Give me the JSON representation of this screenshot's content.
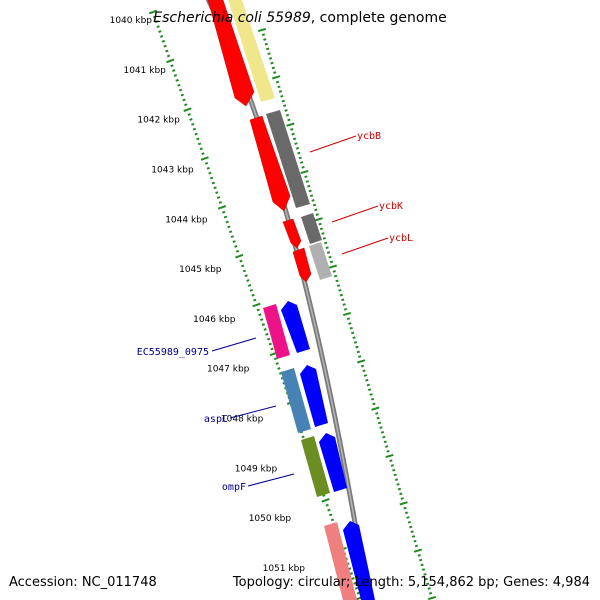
{
  "title": {
    "species": "Escherichia coli 55989",
    "suffix": ", complete genome"
  },
  "footer": {
    "accession": "Accession: NC_011748",
    "summary": "Topology: circular; Length: 5,154,862 bp; Genes: 4,984"
  },
  "colors": {
    "backbone": "#8c8c8c",
    "ticks": "#228b22",
    "label_red": "#cc0000",
    "label_blue": "#00008b"
  },
  "ticks": [
    {
      "label": "1040 kbp"
    },
    {
      "label": "1041 kbp"
    },
    {
      "label": "1042 kbp"
    },
    {
      "label": "1043 kbp"
    },
    {
      "label": "1044 kbp"
    },
    {
      "label": "1045 kbp"
    },
    {
      "label": "1046 kbp"
    },
    {
      "label": "1047 kbp"
    },
    {
      "label": "1048 kbp"
    },
    {
      "label": "1049 kbp"
    },
    {
      "label": "1050 kbp"
    },
    {
      "label": "1051 kbp"
    }
  ],
  "gene_labels": [
    {
      "text": "ycbB",
      "color": "#cc0000"
    },
    {
      "text": "ycbK",
      "color": "#cc0000"
    },
    {
      "text": "ycbL",
      "color": "#cc0000"
    },
    {
      "text": "EC55989_0975",
      "color": "#00008b"
    },
    {
      "text": "aspC",
      "color": "#00008b"
    },
    {
      "text": "ompF",
      "color": "#00008b"
    }
  ]
}
